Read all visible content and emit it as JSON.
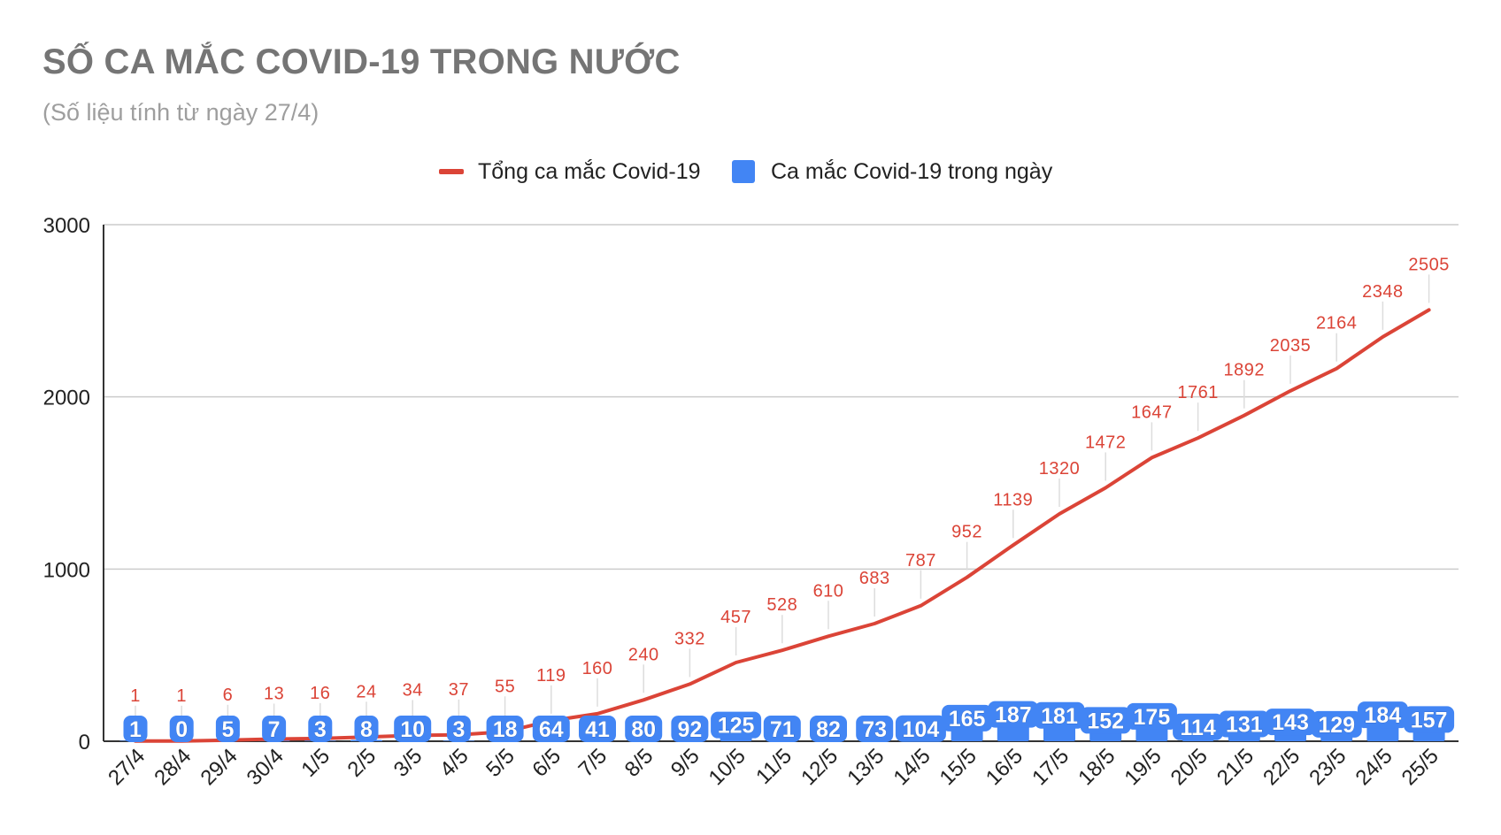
{
  "chart_data": {
    "type": "line",
    "title": "SỐ CA MẮC COVID-19 TRONG NƯỚC",
    "subtitle": "(Số liệu tính từ ngày 27/4)",
    "categories": [
      "27/4",
      "28/4",
      "29/4",
      "30/4",
      "1/5",
      "2/5",
      "3/5",
      "4/5",
      "5/5",
      "6/5",
      "7/5",
      "8/5",
      "9/5",
      "10/5",
      "11/5",
      "12/5",
      "13/5",
      "14/5",
      "15/5",
      "16/5",
      "17/5",
      "18/5",
      "19/5",
      "20/5",
      "21/5",
      "22/5",
      "23/5",
      "24/5",
      "25/5"
    ],
    "series": [
      {
        "name": "Tổng ca mắc Covid-19",
        "type": "line",
        "color": "#db4437",
        "values": [
          1,
          1,
          6,
          13,
          16,
          24,
          34,
          37,
          55,
          119,
          160,
          240,
          332,
          457,
          528,
          610,
          683,
          787,
          952,
          1139,
          1320,
          1472,
          1647,
          1761,
          1892,
          2035,
          2164,
          2348,
          2505
        ]
      },
      {
        "name": "Ca mắc Covid-19 trong ngày",
        "type": "bar",
        "color": "#4285f4",
        "values": [
          1,
          0,
          5,
          7,
          3,
          8,
          10,
          3,
          18,
          64,
          41,
          80,
          92,
          125,
          71,
          82,
          73,
          104,
          165,
          187,
          181,
          152,
          175,
          114,
          131,
          143,
          129,
          184,
          157
        ]
      }
    ],
    "ylim": [
      0,
      3000
    ],
    "yticks": [
      0,
      1000,
      2000,
      3000
    ],
    "grid": true,
    "legend_position": "top-center"
  }
}
